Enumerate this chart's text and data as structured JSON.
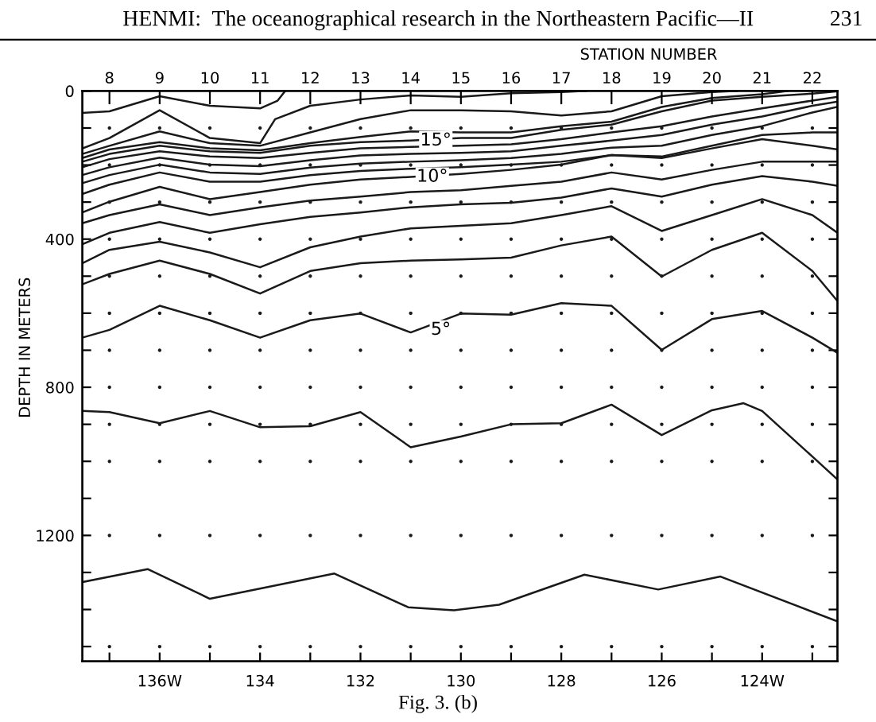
{
  "chart_data": {
    "type": "line",
    "xlabel": null,
    "ylabel": "DEPTH IN METERS",
    "x2label": "STATION NUMBER",
    "annotations": [
      "HENMI:  The oceanographical research in the Northeastern Pacific—II",
      "231",
      "Fig. 3. (b)",
      {
        "text": "15°",
        "x": 130.5,
        "y": 134
      },
      {
        "text": "10°",
        "x": 130.57,
        "y": 232
      },
      {
        "text": "5°",
        "x": 130.4,
        "y": 645
      }
    ],
    "xlim": [
      137.54,
      122.5
    ],
    "xticks": [
      {
        "value": 137,
        "label": null
      },
      {
        "value": 136,
        "label": "136W"
      },
      {
        "value": 135,
        "label": null
      },
      {
        "value": 134,
        "label": "134"
      },
      {
        "value": 133,
        "label": null
      },
      {
        "value": 132,
        "label": "132"
      },
      {
        "value": 131,
        "label": null
      },
      {
        "value": 130,
        "label": "130"
      },
      {
        "value": 129,
        "label": null
      },
      {
        "value": 128,
        "label": "128"
      },
      {
        "value": 127,
        "label": null
      },
      {
        "value": 126,
        "label": "126"
      },
      {
        "value": 125,
        "label": null
      },
      {
        "value": 124,
        "label": "124W"
      },
      {
        "value": 123,
        "label": null
      }
    ],
    "x2lim": [
      7.46,
      22.5
    ],
    "x2ticks": [
      8,
      9,
      10,
      11,
      12,
      13,
      14,
      15,
      16,
      17,
      18,
      19,
      20,
      21,
      22
    ],
    "ylim": [
      1540,
      0
    ],
    "yticks": [
      0,
      {
        "value": 100,
        "label": null
      },
      {
        "value": 200,
        "label": null
      },
      {
        "value": 300,
        "label": null
      },
      400,
      {
        "value": 500,
        "label": null
      },
      {
        "value": 600,
        "label": null
      },
      {
        "value": 700,
        "label": null
      },
      800,
      {
        "value": 900,
        "label": null
      },
      {
        "value": 1000,
        "label": null
      },
      {
        "value": 1100,
        "label": null
      },
      1200,
      {
        "value": 1300,
        "label": null
      },
      {
        "value": 1400,
        "label": null
      },
      {
        "value": 1500,
        "label": null
      }
    ],
    "line_style": "solid",
    "series": [
      {
        "color": "#1a1a1a",
        "x": [
          137.54,
          137,
          136,
          135,
          134,
          133.65,
          133.5
        ],
        "values": [
          59,
          55,
          14,
          40,
          47,
          26,
          0
        ]
      },
      {
        "color": "#1a1a1a",
        "x": [
          137.54,
          137,
          136,
          135,
          134,
          133.7,
          133,
          132,
          131,
          130,
          129,
          128,
          127.5
        ],
        "values": [
          155,
          127,
          52,
          127,
          141,
          76,
          40,
          23,
          12,
          16,
          6,
          3,
          0
        ]
      },
      {
        "color": "#1a1a1a",
        "x": [
          137.54,
          137,
          136,
          135,
          134,
          133,
          132,
          131,
          130,
          129,
          128,
          127,
          126,
          125,
          124.5
        ],
        "values": [
          170,
          148,
          109,
          141,
          148,
          112,
          76,
          52,
          52,
          55,
          66,
          55,
          14,
          3,
          0
        ]
      },
      {
        "color": "#1a1a1a",
        "x": [
          137.54,
          137,
          136,
          135,
          134,
          133,
          132,
          131,
          130,
          129,
          128,
          127,
          126,
          125,
          124,
          123.5
        ],
        "values": [
          181,
          158,
          138,
          155,
          160,
          141,
          124,
          109,
          112,
          112,
          95,
          83,
          43,
          19,
          9,
          0
        ]
      },
      {
        "color": "#1a1a1a",
        "x": [
          137.54,
          137,
          136,
          135,
          134,
          133,
          132,
          131,
          130,
          129,
          128,
          127,
          126,
          125,
          124,
          123,
          122.5
        ],
        "values": [
          191,
          170,
          148,
          163,
          167,
          148,
          138,
          134,
          127,
          127,
          105,
          91,
          55,
          26,
          16,
          7,
          1
        ]
      },
      {
        "color": "#1a1a1a",
        "x": [
          137.54,
          137,
          136,
          135,
          134,
          133,
          132,
          131,
          130,
          129,
          128,
          127,
          126,
          125,
          124,
          123,
          122.5
        ],
        "values": [
          206,
          184,
          163,
          177,
          181,
          167,
          155,
          151,
          148,
          144,
          130,
          112,
          95,
          69,
          47,
          26,
          16
        ]
      },
      {
        "color": "#1a1a1a",
        "x": [
          137.54,
          137,
          136,
          135,
          134,
          133,
          132,
          131,
          130,
          129,
          128,
          127,
          126,
          125,
          124,
          123,
          122.5
        ],
        "values": [
          227,
          206,
          180,
          199,
          203,
          187,
          174,
          170,
          167,
          163,
          148,
          134,
          119,
          91,
          69,
          40,
          29
        ]
      },
      {
        "color": "#1a1a1a",
        "x": [
          137.54,
          137,
          136,
          135,
          134,
          133,
          132,
          131,
          130,
          129,
          128,
          127,
          126,
          125,
          124,
          123,
          122.5
        ],
        "values": [
          249,
          227,
          199,
          220,
          224,
          207,
          196,
          191,
          187,
          181,
          170,
          153,
          148,
          119,
          95,
          58,
          43
        ]
      },
      {
        "color": "#1a1a1a",
        "x": [
          137.54,
          137,
          136,
          135,
          134,
          133,
          132,
          131,
          130,
          129,
          128,
          127,
          126,
          125,
          124,
          123,
          122.5
        ],
        "values": [
          278,
          253,
          220,
          245,
          245,
          227,
          216,
          210,
          206,
          199,
          191,
          173,
          177,
          148,
          119,
          112,
          112
        ]
      },
      {
        "color": "#1a1a1a",
        "x": [
          137.54,
          137,
          136,
          135,
          134,
          133,
          132,
          131,
          130,
          129,
          128,
          127,
          126,
          125,
          124,
          123,
          122.5
        ],
        "values": [
          328,
          299,
          259,
          292,
          273,
          253,
          239,
          232,
          224,
          213,
          199,
          173,
          181,
          155,
          130,
          148,
          158
        ]
      },
      {
        "color": "#1a1a1a",
        "x": [
          137.54,
          137,
          136,
          135,
          134,
          133,
          132,
          131,
          130,
          129,
          128,
          127,
          126,
          125,
          124,
          123,
          122.5
        ],
        "values": [
          357,
          335,
          306,
          335,
          314,
          296,
          285,
          273,
          268,
          256,
          245,
          220,
          239,
          213,
          191,
          191,
          191
        ]
      },
      {
        "color": "#1a1a1a",
        "x": [
          137.54,
          137,
          136,
          135,
          134,
          133,
          132,
          131,
          130,
          129,
          128,
          127,
          126,
          125,
          124,
          123,
          122.5
        ],
        "values": [
          414,
          383,
          354,
          383,
          360,
          340,
          328,
          314,
          306,
          302,
          288,
          263,
          285,
          253,
          230,
          245,
          256
        ]
      },
      {
        "color": "#1a1a1a",
        "x": [
          137.54,
          137,
          136,
          135,
          134,
          133,
          132,
          131,
          130,
          129,
          128,
          127,
          126,
          125,
          124,
          123,
          122.5
        ],
        "values": [
          465,
          429,
          407,
          436,
          476,
          422,
          393,
          371,
          364,
          357,
          335,
          311,
          378,
          335,
          292,
          335,
          383
        ]
      },
      {
        "color": "#1a1a1a",
        "x": [
          137.54,
          137,
          136,
          135,
          134,
          133,
          132,
          131,
          130,
          129,
          128,
          127,
          126,
          125,
          124,
          123,
          122.5
        ],
        "values": [
          522,
          494,
          458,
          494,
          547,
          486,
          465,
          458,
          455,
          450,
          417,
          393,
          501,
          429,
          383,
          486,
          567
        ]
      },
      {
        "color": "#1a1a1a",
        "x": [
          137.54,
          137,
          136,
          135,
          134,
          133,
          132,
          131,
          130,
          129,
          128,
          127,
          126,
          125,
          124,
          123,
          122.5
        ],
        "values": [
          666,
          645,
          580,
          619,
          666,
          619,
          601,
          652,
          601,
          604,
          573,
          580,
          699,
          616,
          594,
          666,
          707
        ]
      },
      {
        "color": "#1a1a1a",
        "x": [
          137.54,
          137,
          136,
          135,
          134,
          133,
          132,
          131,
          130,
          129,
          128,
          127,
          126,
          125,
          124.37,
          124,
          123,
          122.5
        ],
        "values": [
          864,
          867,
          897,
          864,
          908,
          905,
          867,
          962,
          933,
          900,
          897,
          847,
          929,
          862,
          843,
          864,
          987,
          1049
        ]
      },
      {
        "color": "#1a1a1a",
        "x": [
          137.54,
          136.24,
          135.0,
          132.52,
          131.05,
          130.14,
          129.24,
          127.54,
          126.07,
          124.83,
          122.5
        ],
        "values": [
          1326,
          1291,
          1371,
          1303,
          1394,
          1402,
          1387,
          1306,
          1346,
          1311,
          1432
        ]
      },
      {
        "type": "scatter",
        "marker": "circle",
        "color": "#1a1a1a",
        "x": [
          137,
          137,
          137,
          137,
          137,
          137,
          137,
          137,
          137,
          137,
          137,
          137,
          136,
          136,
          136,
          136,
          136,
          136,
          136,
          136,
          136,
          136,
          136,
          136,
          135,
          135,
          135,
          135,
          135,
          135,
          135,
          135,
          135,
          135,
          135,
          135,
          134,
          134,
          134,
          134,
          134,
          134,
          134,
          134,
          134,
          134,
          134,
          134,
          133,
          133,
          133,
          133,
          133,
          133,
          133,
          133,
          133,
          133,
          133,
          133,
          132,
          132,
          132,
          132,
          132,
          132,
          132,
          132,
          132,
          132,
          132,
          132,
          131,
          131,
          131,
          131,
          131,
          131,
          131,
          131,
          131,
          131,
          131,
          131,
          130,
          130,
          130,
          130,
          130,
          130,
          130,
          130,
          130,
          130,
          130,
          130,
          129,
          129,
          129,
          129,
          129,
          129,
          129,
          129,
          129,
          129,
          129,
          129,
          128,
          128,
          128,
          128,
          128,
          128,
          128,
          128,
          128,
          128,
          128,
          128,
          127,
          127,
          127,
          127,
          127,
          127,
          127,
          127,
          127,
          127,
          127,
          127,
          126,
          126,
          126,
          126,
          126,
          126,
          126,
          126,
          126,
          126,
          126,
          126,
          125,
          125,
          125,
          125,
          125,
          125,
          125,
          125,
          125,
          125,
          125,
          125,
          124,
          124,
          124,
          124,
          124,
          124,
          124,
          124,
          124,
          124,
          124,
          124,
          123,
          123,
          123,
          123,
          123,
          123,
          123,
          123,
          123,
          123,
          123,
          123
        ],
        "values": [
          100,
          200,
          300,
          400,
          500,
          600,
          700,
          800,
          900,
          1000,
          1200,
          1500,
          100,
          200,
          300,
          400,
          500,
          600,
          700,
          800,
          900,
          1000,
          1200,
          1500,
          100,
          200,
          300,
          400,
          500,
          600,
          700,
          800,
          900,
          1000,
          1200,
          1500,
          100,
          200,
          300,
          400,
          500,
          600,
          700,
          800,
          900,
          1000,
          1200,
          1500,
          100,
          200,
          300,
          400,
          500,
          600,
          700,
          800,
          900,
          1000,
          1200,
          1500,
          100,
          200,
          300,
          400,
          500,
          600,
          700,
          800,
          900,
          1000,
          1200,
          1500,
          100,
          200,
          300,
          400,
          500,
          600,
          700,
          800,
          900,
          1000,
          1200,
          1500,
          100,
          200,
          300,
          400,
          500,
          600,
          700,
          800,
          900,
          1000,
          1200,
          1500,
          100,
          200,
          300,
          400,
          500,
          600,
          700,
          800,
          900,
          1000,
          1200,
          1500,
          100,
          200,
          300,
          400,
          500,
          600,
          700,
          800,
          900,
          1000,
          1200,
          1500,
          100,
          200,
          300,
          400,
          500,
          600,
          700,
          800,
          900,
          1000,
          1200,
          1500,
          100,
          200,
          300,
          400,
          500,
          600,
          700,
          800,
          900,
          1000,
          1200,
          1500,
          100,
          200,
          300,
          400,
          500,
          600,
          700,
          800,
          900,
          1000,
          1200,
          1500,
          100,
          200,
          300,
          400,
          500,
          600,
          700,
          800,
          900,
          1000,
          1200,
          1500,
          100,
          200,
          300,
          400,
          500,
          600,
          700,
          800,
          900,
          1000,
          1200,
          1500
        ]
      }
    ]
  }
}
